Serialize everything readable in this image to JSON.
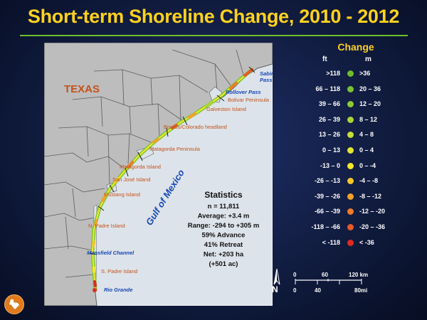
{
  "title": "Short-term Shoreline Change, 2010 - 2012",
  "map": {
    "state_label": "TEXAS",
    "gulf_label": "Gulf of Mexico",
    "places": [
      {
        "name": "Sabine Pass",
        "lines": [
          "Sabine",
          "Pass"
        ],
        "type": "water"
      },
      {
        "name": "Rollover Pass",
        "lines": [
          "Rollover Pass"
        ],
        "type": "water"
      },
      {
        "name": "Bolivar Peninsula",
        "lines": [
          "Bolivar Peninsula"
        ],
        "type": "land"
      },
      {
        "name": "Galveston Island",
        "lines": [
          "Galveston Island"
        ],
        "type": "land"
      },
      {
        "name": "Brazos/Colorado headland",
        "lines": [
          "Brazos/Colorado headland"
        ],
        "type": "land"
      },
      {
        "name": "Matagorda Peninsula",
        "lines": [
          "Matagorda Peninsula"
        ],
        "type": "land"
      },
      {
        "name": "Matagorda Island",
        "lines": [
          "Matagorda Island"
        ],
        "type": "land"
      },
      {
        "name": "San José Island",
        "lines": [
          "San José Island"
        ],
        "type": "land"
      },
      {
        "name": "Mustang Island",
        "lines": [
          "Mustang Island"
        ],
        "type": "land"
      },
      {
        "name": "N. Padre Island",
        "lines": [
          "N. Padre Island"
        ],
        "type": "land"
      },
      {
        "name": "Mansfield Channel",
        "lines": [
          "Mansfield Channel"
        ],
        "type": "water"
      },
      {
        "name": "S. Padre Island",
        "lines": [
          "S. Padre Island"
        ],
        "type": "land"
      },
      {
        "name": "Rio Grande",
        "lines": [
          "Rio Grande"
        ],
        "type": "water"
      }
    ],
    "statistics": {
      "heading": "Statistics",
      "lines": [
        "n = 11,811",
        "Average: +3.4 m",
        "Range: -294 to +305 m",
        "59% Advance",
        "41% Retreat",
        "Net: +203 ha",
        "(+501 ac)"
      ]
    },
    "colors": {
      "land": "#bdbdbd",
      "border": "#5c5c5c",
      "water_label": "#1747b5",
      "place_label": "#c4521a",
      "state_label": "#c4521a",
      "coast_green": "#7cc431",
      "coast_yellow": "#f2ea2a"
    }
  },
  "legend": {
    "title": "Change",
    "ft_header": "ft",
    "m_header": "m",
    "rows": [
      {
        "ft": ">118",
        "m": ">36",
        "color": "#6dbb2e"
      },
      {
        "ft": "66 – 118",
        "m": "20 – 36",
        "color": "#78c232"
      },
      {
        "ft": "39 – 66",
        "m": "12 – 20",
        "color": "#8fcb35"
      },
      {
        "ft": "26 – 39",
        "m": "8 – 12",
        "color": "#a9d43a"
      },
      {
        "ft": "13 – 26",
        "m": "4 – 8",
        "color": "#c8dd38"
      },
      {
        "ft": "0 – 13",
        "m": "0 – 4",
        "color": "#e3e632"
      },
      {
        "ft": "-13 – 0",
        "m": "0 – -4",
        "color": "#f4e82c"
      },
      {
        "ft": "-26 – -13",
        "m": "-4 – -8",
        "color": "#f4c82a"
      },
      {
        "ft": "-39 – -26",
        "m": "-8 – -12",
        "color": "#f1a22a"
      },
      {
        "ft": "-66 – -39",
        "m": "-12 – -20",
        "color": "#ec7d2a"
      },
      {
        "ft": "-118 – -66",
        "m": "-20 – -36",
        "color": "#e55a2a"
      },
      {
        "ft": "< -118",
        "m": "< -36",
        "color": "#dd2b23"
      }
    ]
  },
  "scale_bar": {
    "km_ticks": [
      "0",
      "60",
      "120 km"
    ],
    "mi_ticks": [
      "0",
      "40",
      "80mi"
    ]
  },
  "north_arrow": {
    "label": "N"
  }
}
